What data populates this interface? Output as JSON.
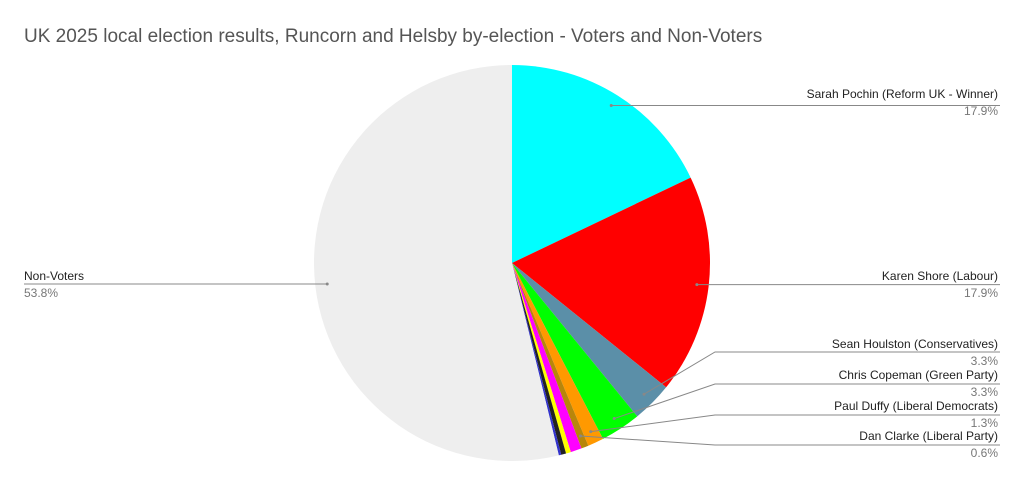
{
  "chart_data": {
    "type": "pie",
    "title": "UK 2025 local election results, Runcorn and Helsby by-election - Voters and Non-Voters",
    "categories": [
      "Sarah Pochin (Reform UK - Winner)",
      "Karen Shore (Labour)",
      "Sean Houlston (Conservatives)",
      "Chris Copeman (Green Party)",
      "Paul Duffy (Liberal Democrats)",
      "Dan Clarke (Liberal Party)",
      null,
      null,
      null,
      null,
      "Non-Voters"
    ],
    "values": [
      17.9,
      17.9,
      3.3,
      3.3,
      1.3,
      0.6,
      0.9,
      0.4,
      0.4,
      0.2,
      53.8
    ],
    "value_labels": [
      "17.9%",
      "17.9%",
      "3.3%",
      "3.3%",
      "1.3%",
      "0.6%",
      null,
      null,
      null,
      null,
      "53.8%"
    ],
    "colors": [
      "#00ffff",
      "#ff0000",
      "#5b8fa8",
      "#00ff00",
      "#ff9900",
      "#b8860b",
      "#ff00ff",
      "#ffff00",
      "#222222",
      "#3333cc",
      "#eeeeee"
    ]
  }
}
